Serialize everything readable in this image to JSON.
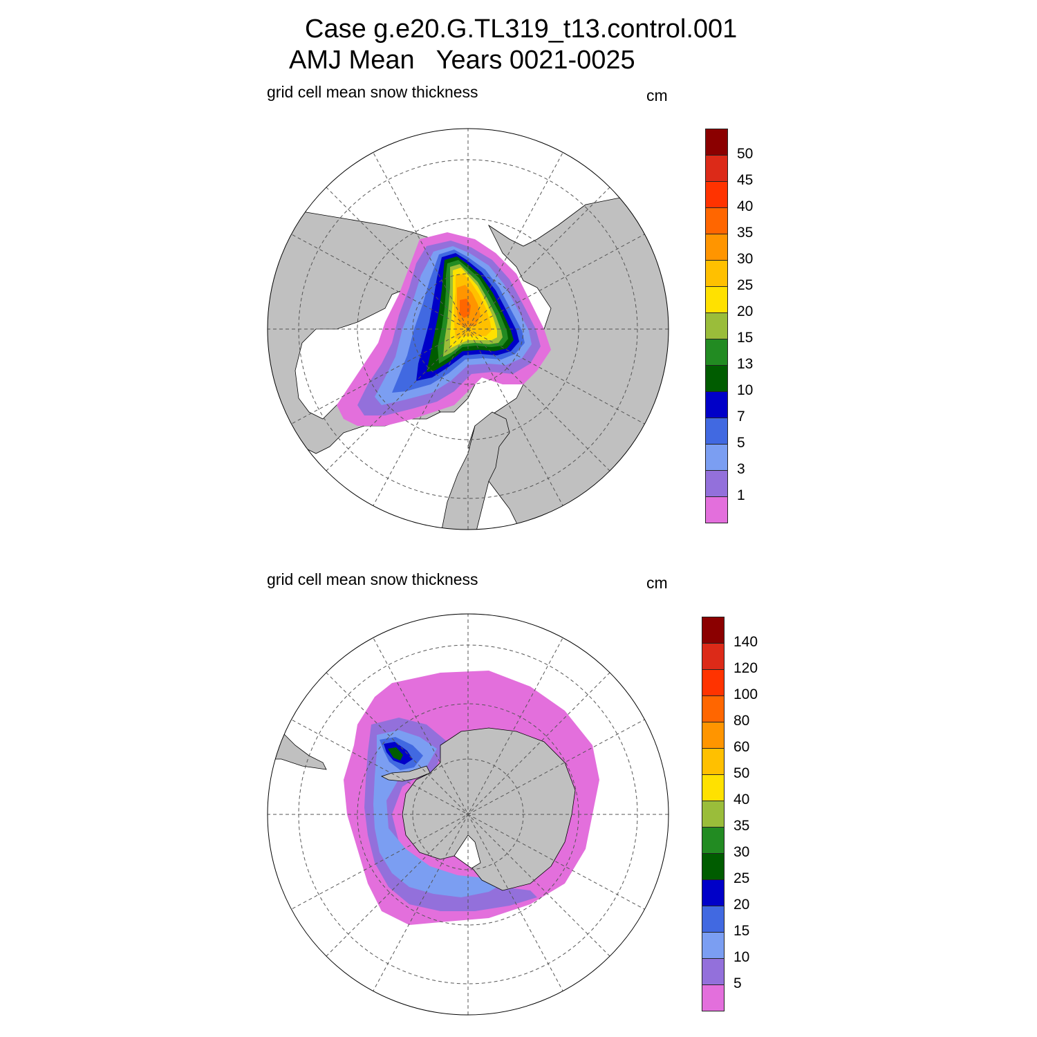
{
  "title": {
    "line1": "Case g.e20.G.TL319_t13.control.001",
    "line2": "AMJ Mean   Years 0021-0025"
  },
  "colors": {
    "land": "#c0c0c0",
    "ocean": "#ffffff",
    "scale": [
      "#e36fdc",
      "#9370db",
      "#7b9ef2",
      "#4169e1",
      "#0000c8",
      "#005c00",
      "#228b22",
      "#9abd3a",
      "#ffe100",
      "#ffc000",
      "#ff9500",
      "#ff6600",
      "#ff3300",
      "#dc2a18",
      "#8b0000"
    ]
  },
  "panels": [
    {
      "id": "north",
      "label": "grid cell mean snow thickness",
      "unit": "cm",
      "colorbar_labels": [
        "1",
        "3",
        "5",
        "7",
        "10",
        "13",
        "15",
        "20",
        "25",
        "30",
        "35",
        "40",
        "45",
        "50"
      ]
    },
    {
      "id": "south",
      "label": "grid cell mean snow thickness",
      "unit": "cm",
      "colorbar_labels": [
        "5",
        "10",
        "15",
        "20",
        "25",
        "30",
        "35",
        "40",
        "50",
        "60",
        "80",
        "100",
        "120",
        "140"
      ]
    }
  ]
}
